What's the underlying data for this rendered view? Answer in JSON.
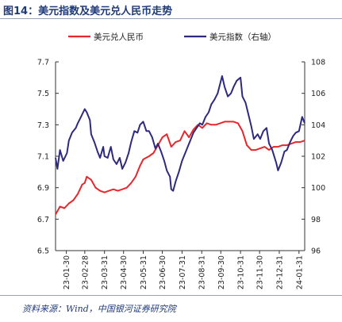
{
  "figure": {
    "title": "图14：美元指数及美元兑人民币走势",
    "source": "资料来源：Wind，中国银河证券研究院"
  },
  "chart_data": {
    "type": "line",
    "x_ticks": [
      "23-01-30",
      "23-02-28",
      "23-03-31",
      "23-04-30",
      "23-05-31",
      "23-06-30",
      "23-07-31",
      "23-08-31",
      "23-09-30",
      "23-10-31",
      "23-11-30",
      "23-12-31",
      "24-01-31"
    ],
    "x_range": [
      "2023-01-13",
      "2024-02-09"
    ],
    "y_left": {
      "ticks": [
        "6.5",
        "6.7",
        "6.9",
        "7.1",
        "7.3",
        "7.5",
        "7.7"
      ],
      "min": 6.5,
      "max": 7.7
    },
    "y_right": {
      "ticks": [
        "96",
        "98",
        "100",
        "102",
        "104",
        "106",
        "108"
      ],
      "min": 96,
      "max": 108
    },
    "legend_position": "top",
    "series": [
      {
        "name": "美元兑人民币",
        "axis": "left",
        "color": "#e8262b",
        "points": [
          [
            "2023-01-13",
            6.73
          ],
          [
            "2023-01-20",
            6.78
          ],
          [
            "2023-01-27",
            6.77
          ],
          [
            "2023-02-03",
            6.8
          ],
          [
            "2023-02-10",
            6.82
          ],
          [
            "2023-02-17",
            6.86
          ],
          [
            "2023-02-24",
            6.92
          ],
          [
            "2023-02-28",
            6.93
          ],
          [
            "2023-03-03",
            6.97
          ],
          [
            "2023-03-10",
            6.95
          ],
          [
            "2023-03-17",
            6.9
          ],
          [
            "2023-03-24",
            6.88
          ],
          [
            "2023-03-31",
            6.87
          ],
          [
            "2023-04-07",
            6.88
          ],
          [
            "2023-04-14",
            6.89
          ],
          [
            "2023-04-21",
            6.88
          ],
          [
            "2023-04-28",
            6.89
          ],
          [
            "2023-05-05",
            6.9
          ],
          [
            "2023-05-12",
            6.93
          ],
          [
            "2023-05-19",
            6.97
          ],
          [
            "2023-05-26",
            7.04
          ],
          [
            "2023-05-31",
            7.08
          ],
          [
            "2023-06-09",
            7.1
          ],
          [
            "2023-06-16",
            7.12
          ],
          [
            "2023-06-23",
            7.17
          ],
          [
            "2023-06-30",
            7.22
          ],
          [
            "2023-07-07",
            7.24
          ],
          [
            "2023-07-14",
            7.16
          ],
          [
            "2023-07-21",
            7.19
          ],
          [
            "2023-07-28",
            7.2
          ],
          [
            "2023-08-04",
            7.26
          ],
          [
            "2023-08-11",
            7.22
          ],
          [
            "2023-08-18",
            7.27
          ],
          [
            "2023-08-25",
            7.3
          ],
          [
            "2023-09-01",
            7.28
          ],
          [
            "2023-09-08",
            7.31
          ],
          [
            "2023-09-15",
            7.3
          ],
          [
            "2023-09-22",
            7.3
          ],
          [
            "2023-09-29",
            7.31
          ],
          [
            "2023-10-06",
            7.32
          ],
          [
            "2023-10-13",
            7.32
          ],
          [
            "2023-10-20",
            7.32
          ],
          [
            "2023-10-27",
            7.31
          ],
          [
            "2023-11-03",
            7.26
          ],
          [
            "2023-11-10",
            7.17
          ],
          [
            "2023-11-17",
            7.14
          ],
          [
            "2023-11-24",
            7.14
          ],
          [
            "2023-12-01",
            7.15
          ],
          [
            "2023-12-08",
            7.16
          ],
          [
            "2023-12-15",
            7.14
          ],
          [
            "2023-12-22",
            7.16
          ],
          [
            "2023-12-29",
            7.16
          ],
          [
            "2024-01-05",
            7.17
          ],
          [
            "2024-01-12",
            7.17
          ],
          [
            "2024-01-19",
            7.18
          ],
          [
            "2024-01-26",
            7.19
          ],
          [
            "2024-02-02",
            7.19
          ],
          [
            "2024-02-09",
            7.2
          ]
        ]
      },
      {
        "name": "美元指数（右轴）",
        "axis": "right",
        "color": "#2e2a7e",
        "points": [
          [
            "2023-01-13",
            101.9
          ],
          [
            "2023-01-16",
            101.2
          ],
          [
            "2023-01-20",
            102.4
          ],
          [
            "2023-01-25",
            101.7
          ],
          [
            "2023-01-31",
            102.2
          ],
          [
            "2023-02-03",
            103.0
          ],
          [
            "2023-02-08",
            103.5
          ],
          [
            "2023-02-14",
            103.8
          ],
          [
            "2023-02-17",
            104.1
          ],
          [
            "2023-02-22",
            104.5
          ],
          [
            "2023-02-28",
            105.0
          ],
          [
            "2023-03-03",
            104.8
          ],
          [
            "2023-03-08",
            104.3
          ],
          [
            "2023-03-10",
            103.4
          ],
          [
            "2023-03-15",
            102.9
          ],
          [
            "2023-03-20",
            102.3
          ],
          [
            "2023-03-24",
            101.9
          ],
          [
            "2023-03-29",
            102.6
          ],
          [
            "2023-03-31",
            102.0
          ],
          [
            "2023-04-05",
            101.9
          ],
          [
            "2023-04-10",
            102.6
          ],
          [
            "2023-04-14",
            101.8
          ],
          [
            "2023-04-19",
            101.5
          ],
          [
            "2023-04-24",
            101.9
          ],
          [
            "2023-04-28",
            101.2
          ],
          [
            "2023-05-03",
            101.6
          ],
          [
            "2023-05-08",
            102.2
          ],
          [
            "2023-05-12",
            102.9
          ],
          [
            "2023-05-17",
            103.6
          ],
          [
            "2023-05-22",
            103.5
          ],
          [
            "2023-05-26",
            104.0
          ],
          [
            "2023-05-31",
            104.2
          ],
          [
            "2023-06-05",
            103.6
          ],
          [
            "2023-06-09",
            103.6
          ],
          [
            "2023-06-14",
            103.2
          ],
          [
            "2023-06-19",
            102.5
          ],
          [
            "2023-06-23",
            102.8
          ],
          [
            "2023-06-28",
            102.3
          ],
          [
            "2023-07-03",
            101.7
          ],
          [
            "2023-07-07",
            101.1
          ],
          [
            "2023-07-12",
            100.7
          ],
          [
            "2023-07-14",
            99.9
          ],
          [
            "2023-07-17",
            99.8
          ],
          [
            "2023-07-21",
            100.4
          ],
          [
            "2023-07-26",
            101.0
          ],
          [
            "2023-07-31",
            101.7
          ],
          [
            "2023-08-04",
            102.1
          ],
          [
            "2023-08-09",
            102.6
          ],
          [
            "2023-08-14",
            103.1
          ],
          [
            "2023-08-18",
            103.5
          ],
          [
            "2023-08-23",
            103.8
          ],
          [
            "2023-08-28",
            104.1
          ],
          [
            "2023-09-01",
            104.0
          ],
          [
            "2023-09-06",
            104.5
          ],
          [
            "2023-09-11",
            104.8
          ],
          [
            "2023-09-15",
            105.3
          ],
          [
            "2023-09-20",
            105.6
          ],
          [
            "2023-09-25",
            106.0
          ],
          [
            "2023-10-02",
            107.1
          ],
          [
            "2023-10-06",
            106.4
          ],
          [
            "2023-10-11",
            105.8
          ],
          [
            "2023-10-16",
            106.0
          ],
          [
            "2023-10-20",
            106.4
          ],
          [
            "2023-10-25",
            106.8
          ],
          [
            "2023-10-31",
            107.0
          ],
          [
            "2023-11-03",
            105.8
          ],
          [
            "2023-11-08",
            105.4
          ],
          [
            "2023-11-14",
            104.4
          ],
          [
            "2023-11-17",
            103.9
          ],
          [
            "2023-11-21",
            103.1
          ],
          [
            "2023-11-27",
            103.4
          ],
          [
            "2023-12-01",
            103.1
          ],
          [
            "2023-12-06",
            103.6
          ],
          [
            "2023-12-11",
            103.8
          ],
          [
            "2023-12-15",
            102.8
          ],
          [
            "2023-12-20",
            102.4
          ],
          [
            "2023-12-26",
            101.6
          ],
          [
            "2023-12-29",
            101.1
          ],
          [
            "2024-01-03",
            101.6
          ],
          [
            "2024-01-08",
            102.3
          ],
          [
            "2024-01-12",
            102.4
          ],
          [
            "2024-01-17",
            102.9
          ],
          [
            "2024-01-22",
            103.3
          ],
          [
            "2024-01-26",
            103.5
          ],
          [
            "2024-01-31",
            103.6
          ],
          [
            "2024-02-05",
            104.5
          ],
          [
            "2024-02-09",
            104.1
          ]
        ]
      }
    ]
  }
}
